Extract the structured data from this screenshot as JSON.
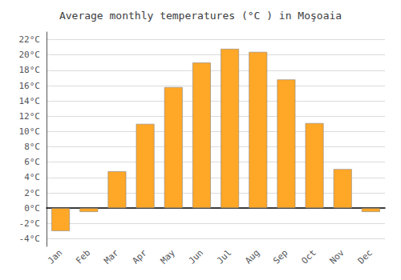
{
  "chart_data": {
    "type": "bar",
    "title": "Average monthly temperatures (°C ) in Moşoaia",
    "categories": [
      "Jan",
      "Feb",
      "Mar",
      "Apr",
      "May",
      "Jun",
      "Jul",
      "Aug",
      "Sep",
      "Oct",
      "Nov",
      "Dec"
    ],
    "values": [
      -3.0,
      -0.5,
      4.8,
      11.0,
      15.8,
      19.0,
      20.8,
      20.4,
      16.8,
      11.1,
      5.1,
      -0.5
    ],
    "color": "#FFA726",
    "ylim": [
      -5,
      23
    ],
    "yticks": [
      {
        "value": -4,
        "label": "-4°C"
      },
      {
        "value": -2,
        "label": "-2°C"
      },
      {
        "value": 0,
        "label": "0°C"
      },
      {
        "value": 2,
        "label": "2°C"
      },
      {
        "value": 4,
        "label": "4°C"
      },
      {
        "value": 6,
        "label": "6°C"
      },
      {
        "value": 8,
        "label": "8°C"
      },
      {
        "value": 10,
        "label": "10°C"
      },
      {
        "value": 12,
        "label": "12°C"
      },
      {
        "value": 14,
        "label": "14°C"
      },
      {
        "value": 16,
        "label": "16°C"
      },
      {
        "value": 18,
        "label": "18°C"
      },
      {
        "value": 20,
        "label": "20°C"
      },
      {
        "value": 22,
        "label": "22°C"
      }
    ],
    "grid": true
  }
}
